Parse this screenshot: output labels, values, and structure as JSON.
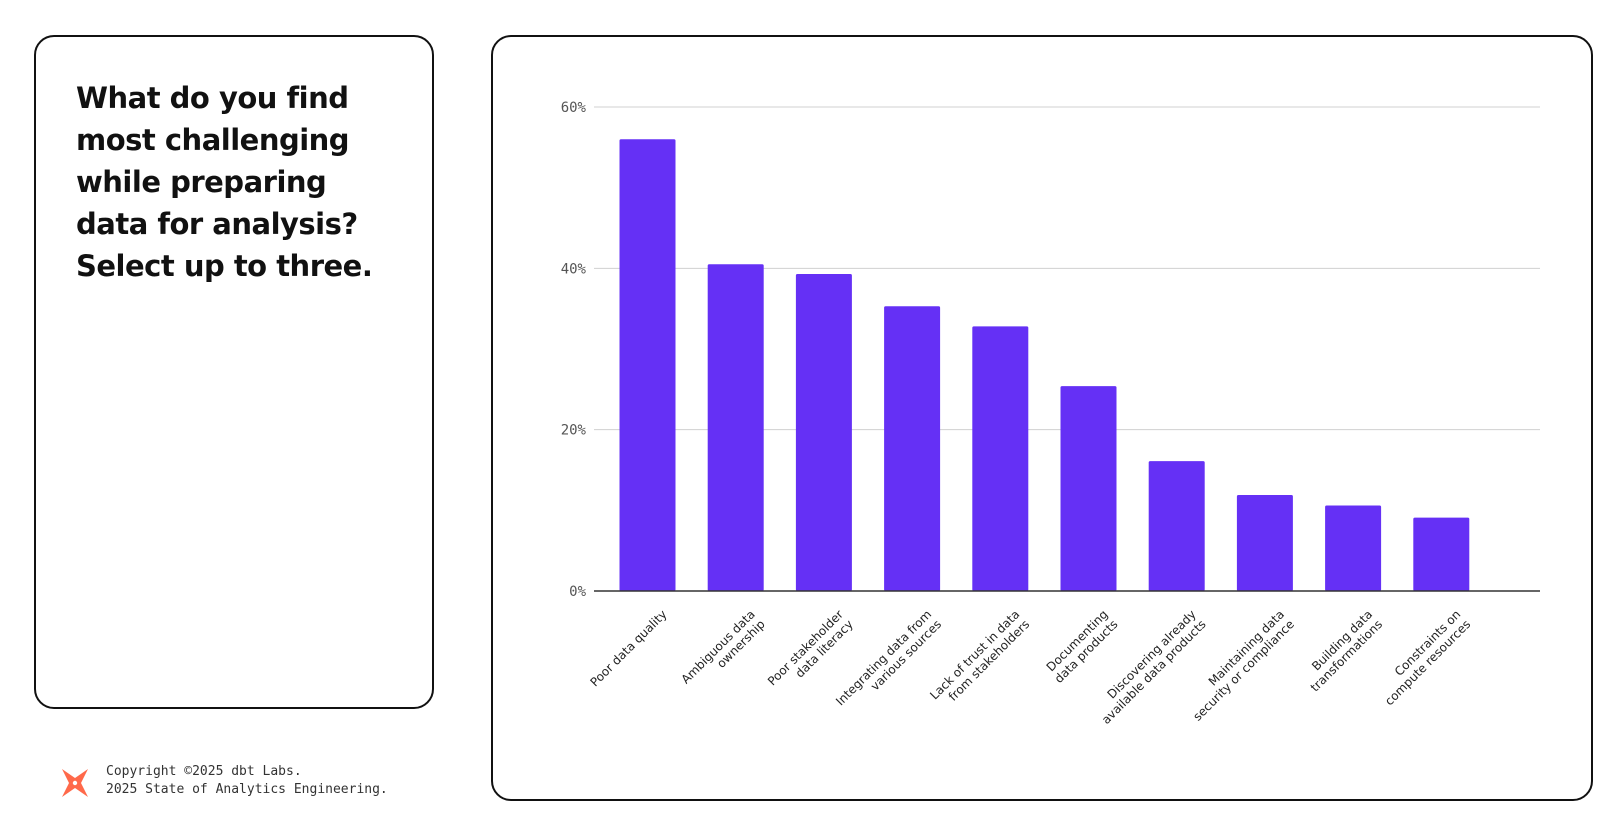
{
  "question": {
    "text": "What do you find most challenging while preparing data for analysis? Select up to three."
  },
  "footer": {
    "logo_icon": "dbt-logo-icon",
    "copyright": "Copyright ©2025 dbt Labs.",
    "report": "2025 State of Analytics Engineering."
  },
  "colors": {
    "bar": "#6530F5",
    "grid": "#D0D0D0",
    "axis": "#333333",
    "logo": "#FF694A"
  },
  "chart_data": {
    "type": "bar",
    "categories": [
      [
        "Poor data quality"
      ],
      [
        "Ambiguous data",
        "ownership"
      ],
      [
        "Poor stakeholder",
        "data literacy"
      ],
      [
        "Integrating data from",
        "various sources"
      ],
      [
        "Lack of trust in data",
        "from stakeholders"
      ],
      [
        "Documenting",
        "data products"
      ],
      [
        "Discovering already",
        "available data products"
      ],
      [
        "Maintaining data",
        "security or compliance"
      ],
      [
        "Building data",
        "transformations"
      ],
      [
        "Constraints on",
        "compute resources"
      ]
    ],
    "values": [
      56,
      40.5,
      39.3,
      35.3,
      32.8,
      25.4,
      16.1,
      11.9,
      10.6,
      9.1
    ],
    "yticks": [
      "0%",
      "20%",
      "40%",
      "60%"
    ],
    "ytick_values": [
      0,
      20,
      40,
      60
    ],
    "ylim": [
      0,
      60
    ],
    "grid": true,
    "title": "",
    "xlabel": "",
    "ylabel": ""
  }
}
